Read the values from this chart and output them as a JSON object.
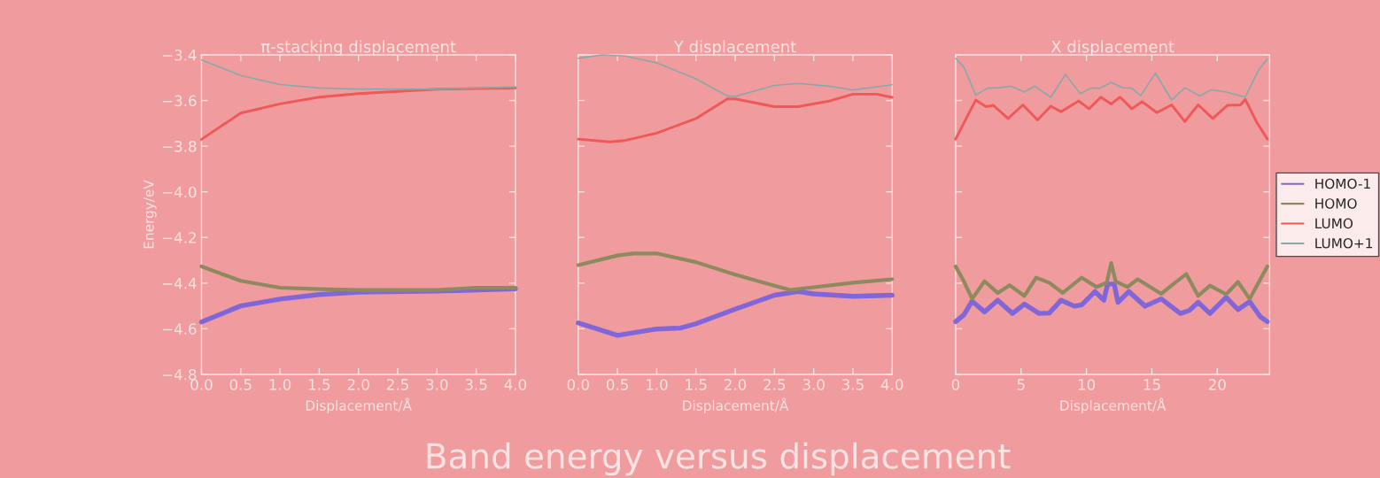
{
  "chart_data": [
    {
      "type": "line",
      "title": "π-stacking displacement",
      "xlabel": "Displacement/Å",
      "ylabel": "Energy/eV",
      "xlim": [
        0,
        4
      ],
      "xticks": [
        {
          "value": 0,
          "label": "0.0"
        },
        0.5,
        {
          "value": 1,
          "label": "1.0"
        },
        1.5,
        {
          "value": 2,
          "label": "2.0"
        },
        2.5,
        {
          "value": 3,
          "label": "3.0"
        },
        3.5,
        {
          "value": 4,
          "label": "4.0"
        }
      ],
      "ylim": [
        -4.8,
        -3.4
      ],
      "yticks": [
        {
          "value": -4.8,
          "label": "−4.8"
        },
        {
          "value": -4.6,
          "label": "−4.6"
        },
        {
          "value": -4.4,
          "label": "−4.4"
        },
        {
          "value": -4.2,
          "label": "−4.2"
        },
        {
          "value": -4.0,
          "label": "−4.0"
        },
        {
          "value": -3.8,
          "label": "−3.8"
        },
        {
          "value": -3.6,
          "label": "−3.6"
        },
        {
          "value": -3.4,
          "label": "−3.4"
        }
      ],
      "grid": false,
      "legend": false,
      "annotations": [
        "Band energy versus displacement"
      ],
      "series": [
        {
          "color": "#8066d8",
          "x": [
            0,
            0.5,
            1.0,
            1.5,
            2.0,
            3.0,
            4.0
          ],
          "values": [
            -4.57,
            -4.5,
            -4.47,
            -4.45,
            -4.44,
            -4.435,
            -4.425
          ]
        },
        {
          "color": "#8c8a5e",
          "x": [
            0,
            0.5,
            1.0,
            1.5,
            2.0,
            3.0,
            3.5,
            4.0
          ],
          "values": [
            -4.327,
            -4.39,
            -4.42,
            -4.426,
            -4.43,
            -4.43,
            -4.42,
            -4.42
          ]
        },
        {
          "color": "#f05858",
          "x": [
            0,
            0.5,
            1.0,
            1.5,
            2.0,
            2.5,
            3.0,
            4.0
          ],
          "values": [
            -3.77,
            -3.655,
            -3.615,
            -3.585,
            -3.57,
            -3.56,
            -3.55,
            -3.545
          ]
        },
        {
          "color": "#8aa8a8",
          "x": [
            0,
            0.5,
            1.0,
            1.5,
            2.0,
            3.0,
            4.0
          ],
          "values": [
            -3.422,
            -3.49,
            -3.53,
            -3.545,
            -3.55,
            -3.55,
            -3.54
          ]
        }
      ]
    },
    {
      "type": "line",
      "title": "Y displacement",
      "xlabel": "Displacement/Å",
      "xlim": [
        0,
        4
      ],
      "xticks": [
        {
          "value": 0,
          "label": "0.0"
        },
        0.5,
        {
          "value": 1,
          "label": "1.0"
        },
        1.5,
        {
          "value": 2,
          "label": "2.0"
        },
        2.5,
        {
          "value": 3,
          "label": "3.0"
        },
        3.5,
        {
          "value": 4,
          "label": "4.0"
        }
      ],
      "ylim": [
        -4.8,
        -3.4
      ],
      "yticks": [
        -4.8,
        -4.6,
        -4.4,
        -4.2,
        -4.0,
        -3.8,
        -3.6,
        -3.4
      ],
      "tick_labels": "x",
      "grid": false,
      "legend": false,
      "series": [
        {
          "color": "#8066d8",
          "x": [
            0,
            0.5,
            1.0,
            1.3,
            1.5,
            2.0,
            2.5,
            2.8,
            3.0,
            3.5,
            4.0
          ],
          "values": [
            -4.574,
            -4.629,
            -4.601,
            -4.597,
            -4.578,
            -4.514,
            -4.453,
            -4.437,
            -4.447,
            -4.458,
            -4.453
          ]
        },
        {
          "color": "#8c8a5e",
          "x": [
            0,
            0.5,
            0.7,
            1.0,
            1.5,
            2.0,
            2.5,
            2.7,
            3.0,
            3.5,
            4.0
          ],
          "values": [
            -4.321,
            -4.279,
            -4.27,
            -4.27,
            -4.308,
            -4.363,
            -4.411,
            -4.43,
            -4.418,
            -4.398,
            -4.383
          ]
        },
        {
          "color": "#f05858",
          "x": [
            0,
            0.4,
            0.6,
            1.0,
            1.5,
            1.9,
            2.0,
            2.5,
            2.8,
            3.2,
            3.5,
            3.8,
            4.0
          ],
          "values": [
            -3.769,
            -3.781,
            -3.775,
            -3.743,
            -3.679,
            -3.593,
            -3.593,
            -3.627,
            -3.627,
            -3.602,
            -3.572,
            -3.572,
            -3.586
          ]
        },
        {
          "color": "#8aa8a8",
          "x": [
            0,
            0.3,
            0.6,
            1.0,
            1.5,
            1.9,
            2.0,
            2.5,
            2.8,
            3.2,
            3.5,
            4.0
          ],
          "values": [
            -3.415,
            -3.4,
            -3.405,
            -3.435,
            -3.505,
            -3.58,
            -3.582,
            -3.534,
            -3.525,
            -3.537,
            -3.554,
            -3.531
          ]
        }
      ]
    },
    {
      "type": "line",
      "title": "X displacement",
      "xlabel": "Displacement/Å",
      "xlim": [
        0,
        24
      ],
      "xticks": [
        0,
        5,
        10,
        15,
        20
      ],
      "ylim": [
        -4.8,
        -3.4
      ],
      "yticks": [
        -4.8,
        -4.6,
        -4.4,
        -4.2,
        -4.0,
        -3.8,
        -3.6,
        -3.4
      ],
      "tick_labels": "x",
      "grid": false,
      "legend": "right",
      "series": [
        {
          "name": "HOMO-1",
          "color": "#8066d8",
          "x": [
            0,
            0.63,
            1.26,
            2.21,
            3.22,
            4.35,
            5.25,
            6.38,
            7.16,
            8.06,
            9.08,
            9.64,
            10.65,
            11.33,
            11.62,
            12.12,
            12.41,
            13.24,
            14.48,
            15.72,
            17.18,
            17.86,
            18.54,
            19.44,
            20.68,
            21.58,
            22.48,
            23.27,
            23.83
          ],
          "values": [
            -4.569,
            -4.539,
            -4.479,
            -4.526,
            -4.475,
            -4.533,
            -4.492,
            -4.533,
            -4.531,
            -4.475,
            -4.501,
            -4.495,
            -4.437,
            -4.475,
            -4.404,
            -4.404,
            -4.484,
            -4.437,
            -4.501,
            -4.469,
            -4.533,
            -4.52,
            -4.484,
            -4.533,
            -4.462,
            -4.516,
            -4.481,
            -4.546,
            -4.569
          ]
        },
        {
          "name": "HOMO",
          "color": "#8c8a5e",
          "x": [
            0,
            0.63,
            1.26,
            2.21,
            3.22,
            4.12,
            5.25,
            6.15,
            7.16,
            8.18,
            9.64,
            10.77,
            11.55,
            11.89,
            12.23,
            13.13,
            13.92,
            15.72,
            16.62,
            17.63,
            18.54,
            19.44,
            20.68,
            21.58,
            22.48,
            23.27,
            23.83
          ],
          "values": [
            -4.327,
            -4.392,
            -4.469,
            -4.392,
            -4.443,
            -4.409,
            -4.456,
            -4.376,
            -4.398,
            -4.443,
            -4.376,
            -4.417,
            -4.398,
            -4.312,
            -4.392,
            -4.417,
            -4.383,
            -4.447,
            -4.405,
            -4.36,
            -4.456,
            -4.411,
            -4.449,
            -4.395,
            -4.469,
            -4.385,
            -4.327
          ]
        },
        {
          "name": "LUMO",
          "color": "#f05858",
          "x": [
            0,
            0.63,
            1.53,
            2.32,
            2.88,
            4.01,
            5.14,
            6.26,
            7.27,
            8.06,
            9.41,
            10.2,
            11.1,
            11.89,
            12.57,
            13.47,
            14.25,
            15.38,
            16.51,
            17.52,
            18.54,
            19.66,
            20.77,
            21.78,
            22.14,
            23.04,
            23.83
          ],
          "values": [
            -3.769,
            -3.698,
            -3.598,
            -3.627,
            -3.621,
            -3.679,
            -3.619,
            -3.685,
            -3.625,
            -3.649,
            -3.602,
            -3.636,
            -3.585,
            -3.615,
            -3.585,
            -3.636,
            -3.605,
            -3.653,
            -3.619,
            -3.692,
            -3.619,
            -3.679,
            -3.621,
            -3.619,
            -3.595,
            -3.698,
            -3.769
          ]
        },
        {
          "name": "LUMO+1",
          "color": "#8aa8a8",
          "x": [
            0,
            0.63,
            1.53,
            2.43,
            3.33,
            4.23,
            5.25,
            6.04,
            7.27,
            8.4,
            9.53,
            10.32,
            10.99,
            11.89,
            12.79,
            13.47,
            14.14,
            15.27,
            16.51,
            17.52,
            18.65,
            19.55,
            20.68,
            22.14,
            23.15,
            23.83
          ],
          "values": [
            -3.415,
            -3.454,
            -3.576,
            -3.546,
            -3.544,
            -3.537,
            -3.563,
            -3.537,
            -3.585,
            -3.486,
            -3.57,
            -3.546,
            -3.546,
            -3.521,
            -3.544,
            -3.546,
            -3.579,
            -3.48,
            -3.598,
            -3.544,
            -3.579,
            -3.553,
            -3.563,
            -3.585,
            -3.467,
            -3.418
          ]
        }
      ]
    }
  ]
}
